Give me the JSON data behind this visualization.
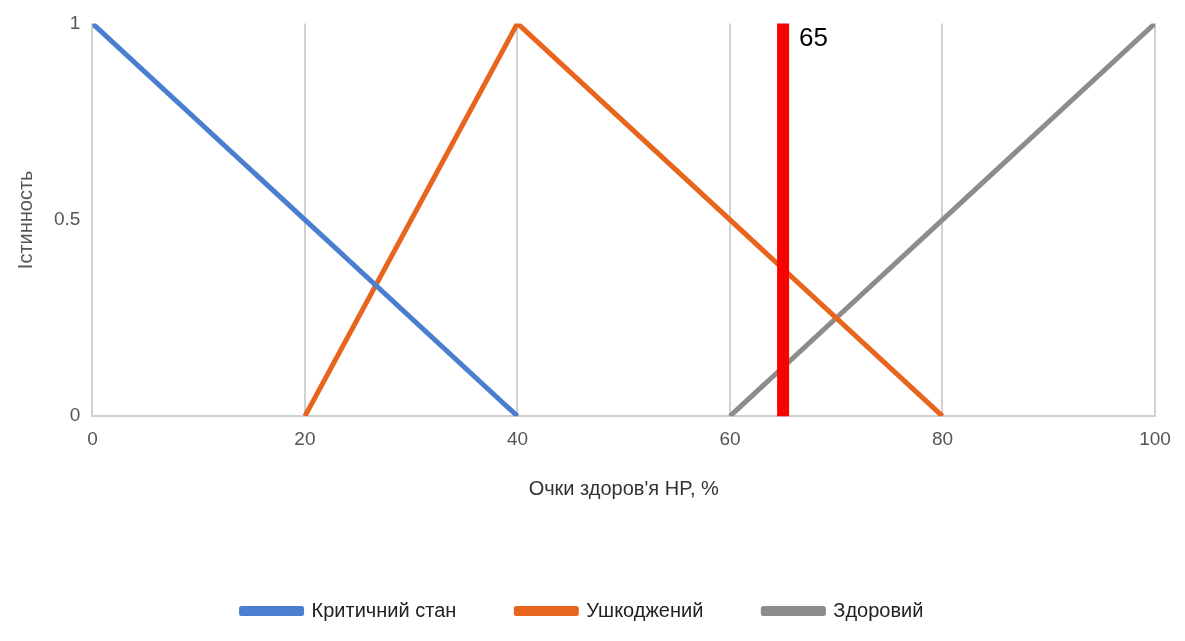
{
  "chart_data": {
    "type": "line",
    "xlabel": "Очки здоров'я HP, %",
    "ylabel": "Істинность",
    "xlim": [
      0,
      100
    ],
    "xticks": [
      0,
      20,
      40,
      60,
      80,
      100
    ],
    "ylim": [
      0,
      1
    ],
    "yticks": [
      0,
      0.5,
      1
    ],
    "grid": "x",
    "legend": "bottom",
    "marker": "none",
    "line_style": "solid",
    "series": [
      {
        "name": "Критичний стан",
        "color": "#4a7fd0",
        "x": [
          0,
          40
        ],
        "values": [
          1,
          0
        ]
      },
      {
        "name": "Ушкоджений",
        "color": "#e8651e",
        "x": [
          20,
          40,
          80
        ],
        "values": [
          0,
          1,
          0
        ]
      },
      {
        "name": "Здоровий",
        "color": "#8c8c8c",
        "x": [
          60,
          100
        ],
        "values": [
          0,
          1
        ]
      }
    ],
    "ref_lines": [
      {
        "axis": "x",
        "value": 65,
        "label": "65",
        "color": "#ff0000",
        "line_style": "solid"
      }
    ]
  }
}
